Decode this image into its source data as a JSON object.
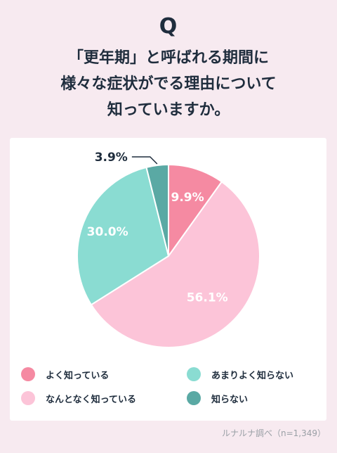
{
  "header": {
    "q_label": "Q",
    "title_lines": [
      "「更年期」と呼ばれる期間に",
      "様々な症状がでる理由について",
      "知っていますか。"
    ]
  },
  "chart_data": {
    "type": "pie",
    "title": "",
    "slices": [
      {
        "label": "よく知っている",
        "value": 9.9,
        "display": "9.9%",
        "color": "#f58aa2"
      },
      {
        "label": "なんとなく知っている",
        "value": 56.1,
        "display": "56.1%",
        "color": "#fcc4d8"
      },
      {
        "label": "あまりよく知らない",
        "value": 30.0,
        "display": "30.0%",
        "color": "#8adcd2"
      },
      {
        "label": "知らない",
        "value": 3.9,
        "display": "3.9%",
        "color": "#5aa9a4"
      }
    ],
    "legend_position": "bottom",
    "start_angle_deg": 0,
    "direction": "clockwise"
  },
  "legend": {
    "items": [
      {
        "label": "よく知っている",
        "color": "#f58aa2"
      },
      {
        "label": "なんとなく知っている",
        "color": "#fcc4d8"
      },
      {
        "label": "あまりよく知らない",
        "color": "#8adcd2"
      },
      {
        "label": "知らない",
        "color": "#5aa9a4"
      }
    ]
  },
  "source": "ルナルナ調べ（n=1,349）"
}
